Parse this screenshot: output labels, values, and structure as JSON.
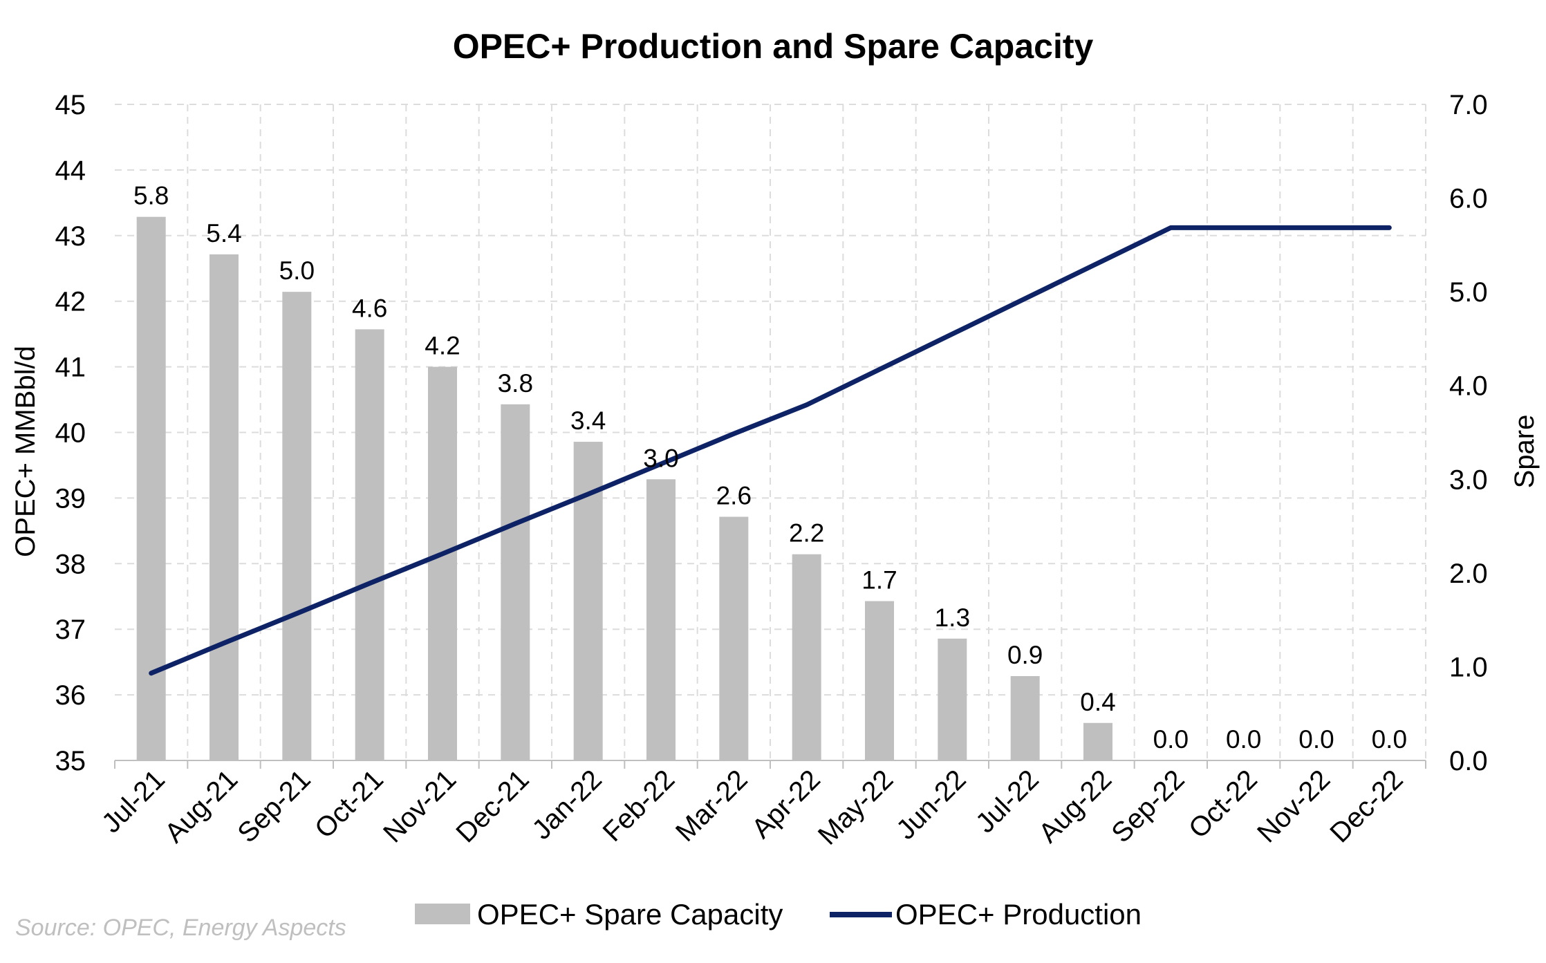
{
  "chart_data": {
    "type": "bar",
    "title": "OPEC+ Production and Spare Capacity",
    "categories": [
      "Jul-21",
      "Aug-21",
      "Sep-21",
      "Oct-21",
      "Nov-21",
      "Dec-21",
      "Jan-22",
      "Feb-22",
      "Mar-22",
      "Apr-22",
      "May-22",
      "Jun-22",
      "Jul-22",
      "Aug-22",
      "Sep-22",
      "Oct-22",
      "Nov-22",
      "Dec-22"
    ],
    "series": [
      {
        "name": "OPEC+ Spare Capacity",
        "type": "bar",
        "axis": "right",
        "color": "#bfbfbf",
        "values": [
          5.8,
          5.4,
          5.0,
          4.6,
          4.2,
          3.8,
          3.4,
          3.0,
          2.6,
          2.2,
          1.7,
          1.3,
          0.9,
          0.4,
          0.0,
          0.0,
          0.0,
          0.0
        ],
        "labels": [
          "5.8",
          "5.4",
          "5.0",
          "4.6",
          "4.2",
          "3.8",
          "3.4",
          "3.0",
          "2.6",
          "2.2",
          "1.7",
          "1.3",
          "0.9",
          "0.4",
          "0.0",
          "0.0",
          "0.0",
          "0.0"
        ]
      },
      {
        "name": "OPEC+ Production",
        "type": "line",
        "axis": "left",
        "color": "#0d2366",
        "values": [
          36.33,
          36.79,
          37.24,
          37.7,
          38.15,
          38.61,
          39.06,
          39.52,
          39.98,
          40.42,
          40.96,
          41.5,
          42.04,
          42.58,
          43.12,
          43.12,
          43.12,
          43.12
        ]
      }
    ],
    "y_left": {
      "label": "OPEC+ MMBbl/d",
      "min": 35,
      "max": 45,
      "ticks": [
        "35",
        "36",
        "37",
        "38",
        "39",
        "40",
        "41",
        "42",
        "43",
        "44",
        "45"
      ]
    },
    "y_right": {
      "label": "Spare",
      "min": 0,
      "max": 7,
      "ticks": [
        "0.0",
        "1.0",
        "2.0",
        "3.0",
        "4.0",
        "5.0",
        "6.0",
        "7.0"
      ]
    },
    "grid": true,
    "legend": "bottom"
  },
  "source": "Source: OPEC, Energy Aspects"
}
